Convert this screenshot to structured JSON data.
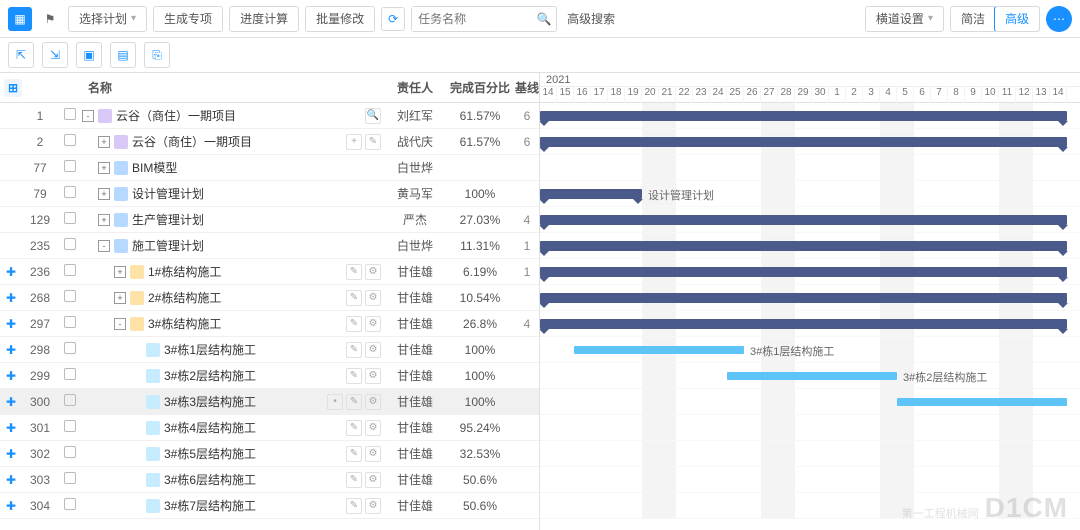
{
  "toolbar": {
    "plan_dropdown": "选择计划",
    "gen_special": "生成专项",
    "progress_calc": "进度计算",
    "batch_edit": "批量修改",
    "search_placeholder": "任务名称",
    "adv_search": "高级搜索",
    "gantt_settings": "横道设置",
    "view_simple": "简洁",
    "view_advanced": "高级"
  },
  "columns": {
    "name": "名称",
    "owner": "责任人",
    "pct": "完成百分比",
    "base": "基线"
  },
  "gantt": {
    "year": "2021",
    "days": [
      "14",
      "15",
      "16",
      "17",
      "18",
      "19",
      "20",
      "21",
      "22",
      "23",
      "24",
      "25",
      "26",
      "27",
      "28",
      "29",
      "30",
      "1",
      "2",
      "3",
      "4",
      "5",
      "6",
      "7",
      "8",
      "9",
      "10",
      "11",
      "12",
      "13",
      "14"
    ],
    "weekend_cols": [
      6,
      7,
      13,
      14,
      20,
      21,
      27,
      28
    ],
    "dayWidth": 17,
    "colors": {
      "summary": "#4a5a8a",
      "task": "#5ec3f7",
      "weekend": "#f4f4f4"
    }
  },
  "rows": [
    {
      "plus": false,
      "num": "1",
      "exp": "-",
      "icon": "folder-purple",
      "indent": 0,
      "name": "云谷（商住）一期项目",
      "actIcons": [
        "search"
      ],
      "owner": "刘红军",
      "pct": "61.57%",
      "base": "6",
      "bar": {
        "type": "navy",
        "tri": true,
        "start": 0,
        "span": 31
      }
    },
    {
      "plus": false,
      "num": "2",
      "exp": "+",
      "icon": "folder-purple",
      "indent": 1,
      "name": "云谷（商住）一期项目",
      "actIcons": [
        "plus",
        "pen"
      ],
      "owner": "战代庆",
      "pct": "61.57%",
      "base": "6",
      "bar": {
        "type": "navy",
        "tri": true,
        "start": 0,
        "span": 31
      }
    },
    {
      "plus": false,
      "num": "77",
      "exp": "+",
      "icon": "folder-blue",
      "indent": 1,
      "name": "BIM模型",
      "actIcons": [],
      "owner": "白世烨",
      "pct": "",
      "base": ""
    },
    {
      "plus": false,
      "num": "79",
      "exp": "+",
      "icon": "folder-blue",
      "indent": 1,
      "name": "设计管理计划",
      "actIcons": [],
      "owner": "黄马军",
      "pct": "100%",
      "base": "",
      "bar": {
        "type": "navy",
        "tri": true,
        "start": 0,
        "span": 6,
        "label": "设计管理计划"
      }
    },
    {
      "plus": false,
      "num": "129",
      "exp": "+",
      "icon": "folder-blue",
      "indent": 1,
      "name": "生产管理计划",
      "actIcons": [],
      "owner": "严杰",
      "pct": "27.03%",
      "base": "4",
      "bar": {
        "type": "navy",
        "tri": true,
        "start": 0,
        "span": 31
      }
    },
    {
      "plus": false,
      "num": "235",
      "exp": "-",
      "icon": "folder-blue",
      "indent": 1,
      "name": "施工管理计划",
      "actIcons": [],
      "owner": "白世烨",
      "pct": "11.31%",
      "base": "1",
      "bar": {
        "type": "navy",
        "tri": true,
        "start": 0,
        "span": 31
      }
    },
    {
      "plus": true,
      "num": "236",
      "exp": "+",
      "icon": "folder-yellow",
      "indent": 2,
      "name": "1#栋结构施工",
      "actIcons": [
        "pen",
        "gear"
      ],
      "owner": "甘佳雄",
      "pct": "6.19%",
      "base": "1",
      "bar": {
        "type": "navy",
        "tri": true,
        "start": 0,
        "span": 31
      }
    },
    {
      "plus": true,
      "num": "268",
      "exp": "+",
      "icon": "folder-yellow",
      "indent": 2,
      "name": "2#栋结构施工",
      "actIcons": [
        "pen",
        "gear"
      ],
      "owner": "甘佳雄",
      "pct": "10.54%",
      "base": "",
      "bar": {
        "type": "navy",
        "tri": true,
        "start": 0,
        "span": 31
      }
    },
    {
      "plus": true,
      "num": "297",
      "exp": "-",
      "icon": "folder-yellow",
      "indent": 2,
      "name": "3#栋结构施工",
      "actIcons": [
        "pen",
        "gear"
      ],
      "owner": "甘佳雄",
      "pct": "26.8%",
      "base": "4",
      "bar": {
        "type": "navy",
        "tri": true,
        "start": 0,
        "span": 31
      }
    },
    {
      "plus": true,
      "num": "298",
      "exp": "",
      "icon": "doc",
      "indent": 3,
      "name": "3#栋1层结构施工",
      "actIcons": [
        "pen",
        "gear"
      ],
      "owner": "甘佳雄",
      "pct": "100%",
      "base": "",
      "bar": {
        "type": "sky",
        "start": 2,
        "span": 10,
        "label": "3#栋1层结构施工"
      }
    },
    {
      "plus": true,
      "num": "299",
      "exp": "",
      "icon": "doc",
      "indent": 3,
      "name": "3#栋2层结构施工",
      "actIcons": [
        "pen",
        "gear"
      ],
      "owner": "甘佳雄",
      "pct": "100%",
      "base": "",
      "bar": {
        "type": "sky",
        "start": 11,
        "span": 10,
        "label": "3#栋2层结构施工"
      }
    },
    {
      "plus": true,
      "num": "300",
      "exp": "",
      "icon": "doc",
      "indent": 3,
      "name": "3#栋3层结构施工",
      "actIcons": [
        "dot",
        "pen",
        "gear"
      ],
      "owner": "甘佳雄",
      "pct": "100%",
      "base": "",
      "sel": true,
      "bar": {
        "type": "sky",
        "start": 21,
        "span": 10
      }
    },
    {
      "plus": true,
      "num": "301",
      "exp": "",
      "icon": "doc",
      "indent": 3,
      "name": "3#栋4层结构施工",
      "actIcons": [
        "pen",
        "gear"
      ],
      "owner": "甘佳雄",
      "pct": "95.24%",
      "base": ""
    },
    {
      "plus": true,
      "num": "302",
      "exp": "",
      "icon": "doc",
      "indent": 3,
      "name": "3#栋5层结构施工",
      "actIcons": [
        "pen",
        "gear"
      ],
      "owner": "甘佳雄",
      "pct": "32.53%",
      "base": ""
    },
    {
      "plus": true,
      "num": "303",
      "exp": "",
      "icon": "doc",
      "indent": 3,
      "name": "3#栋6层结构施工",
      "actIcons": [
        "pen",
        "gear"
      ],
      "owner": "甘佳雄",
      "pct": "50.6%",
      "base": ""
    },
    {
      "plus": true,
      "num": "304",
      "exp": "",
      "icon": "doc",
      "indent": 3,
      "name": "3#栋7层结构施工",
      "actIcons": [
        "pen",
        "gear"
      ],
      "owner": "甘佳雄",
      "pct": "50.6%",
      "base": ""
    }
  ],
  "wm": {
    "big": "D1CM",
    "small": "第一工程机械网"
  }
}
